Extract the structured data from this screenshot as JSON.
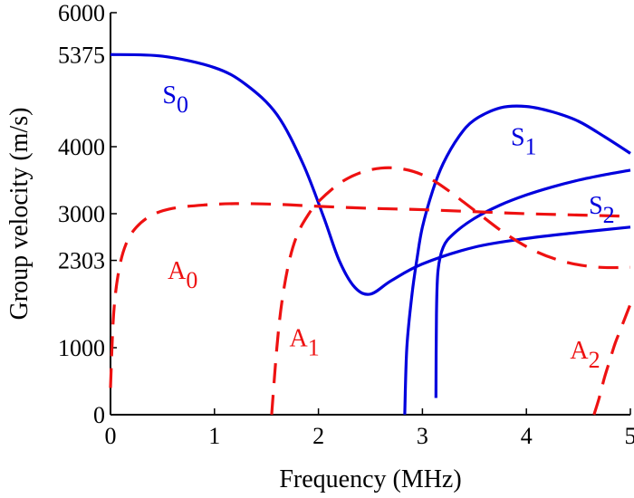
{
  "chart_data": {
    "type": "line",
    "xlabel": "Frequency (MHz)",
    "ylabel": "Group velocity (m/s)",
    "xlim": [
      0,
      5
    ],
    "ylim": [
      0,
      6000
    ],
    "xticks": [
      0,
      1,
      2,
      3,
      4,
      5
    ],
    "yticks": [
      0,
      1000,
      2303,
      3000,
      4000,
      5375,
      6000
    ],
    "grid": false,
    "legend": "none",
    "series": [
      {
        "name": "S0",
        "color": "#0000dd",
        "style": "solid",
        "x": [
          0,
          0.5,
          1.0,
          1.3,
          1.6,
          1.85,
          2.05,
          2.2,
          2.35,
          2.5,
          2.7,
          3.0,
          3.5,
          4.0,
          4.5,
          5.0
        ],
        "y": [
          5375,
          5350,
          5180,
          4930,
          4480,
          3750,
          2950,
          2300,
          1900,
          1800,
          2000,
          2250,
          2500,
          2630,
          2720,
          2800
        ]
      },
      {
        "name": "S1",
        "color": "#0000dd",
        "style": "solid",
        "x": [
          2.83,
          2.85,
          2.9,
          2.95,
          3.0,
          3.1,
          3.2,
          3.35,
          3.5,
          3.75,
          4.0,
          4.25,
          4.5,
          4.75,
          5.0
        ],
        "y": [
          0,
          1000,
          1800,
          2350,
          2800,
          3350,
          3750,
          4150,
          4400,
          4580,
          4600,
          4520,
          4380,
          4150,
          3900
        ]
      },
      {
        "name": "S2",
        "color": "#0000dd",
        "style": "solid",
        "x": [
          3.13,
          3.135,
          3.15,
          3.2,
          3.3,
          3.5,
          3.75,
          4.0,
          4.25,
          4.5,
          4.75,
          5.0
        ],
        "y": [
          250,
          1500,
          2150,
          2500,
          2700,
          2930,
          3130,
          3280,
          3400,
          3500,
          3580,
          3650
        ]
      },
      {
        "name": "A0",
        "color": "#ee1111",
        "style": "dashed",
        "x": [
          0,
          0.03,
          0.08,
          0.15,
          0.25,
          0.4,
          0.6,
          0.9,
          1.2,
          1.6,
          2.0,
          2.5,
          3.0,
          3.5,
          4.0,
          4.5,
          5.0
        ],
        "y": [
          400,
          1500,
          2150,
          2550,
          2800,
          2980,
          3080,
          3130,
          3150,
          3140,
          3110,
          3080,
          3060,
          3030,
          3000,
          2980,
          2960
        ]
      },
      {
        "name": "A1",
        "color": "#ee1111",
        "style": "dashed",
        "x": [
          1.55,
          1.6,
          1.65,
          1.72,
          1.8,
          1.9,
          2.0,
          2.2,
          2.4,
          2.6,
          2.8,
          3.0,
          3.2,
          3.5,
          3.8,
          4.1,
          4.4,
          4.7,
          5.0
        ],
        "y": [
          0,
          1000,
          1700,
          2300,
          2700,
          2980,
          3180,
          3450,
          3610,
          3680,
          3670,
          3580,
          3400,
          3050,
          2700,
          2430,
          2270,
          2200,
          2200
        ]
      },
      {
        "name": "A2",
        "color": "#ee1111",
        "style": "dashed",
        "x": [
          4.65,
          4.7,
          4.75,
          4.8,
          4.85,
          4.9,
          4.95,
          5.0
        ],
        "y": [
          0,
          250,
          550,
          800,
          1050,
          1250,
          1450,
          1650
        ]
      }
    ],
    "annotations": [
      {
        "base": "S",
        "sub": "0",
        "x": 0.5,
        "y": 4650,
        "color": "#0000dd"
      },
      {
        "base": "S",
        "sub": "1",
        "x": 3.85,
        "y": 4020,
        "color": "#0000dd"
      },
      {
        "base": "S",
        "sub": "2",
        "x": 4.6,
        "y": 3000,
        "color": "#0000dd"
      },
      {
        "base": "A",
        "sub": "0",
        "x": 0.55,
        "y": 2030,
        "color": "#ee1111"
      },
      {
        "base": "A",
        "sub": "1",
        "x": 1.72,
        "y": 1020,
        "color": "#ee1111"
      },
      {
        "base": "A",
        "sub": "2",
        "x": 4.42,
        "y": 840,
        "color": "#ee1111"
      }
    ]
  }
}
